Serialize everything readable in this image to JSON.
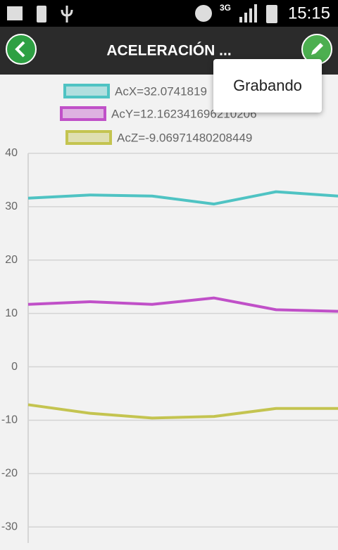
{
  "status_bar": {
    "network": "3G",
    "time": "15:15"
  },
  "header": {
    "title": "ACELERACIÓN ..."
  },
  "menu": {
    "items": [
      "Grabando"
    ]
  },
  "chart_data": {
    "type": "line",
    "categories": [
      null,
      null,
      null,
      null,
      null,
      null
    ],
    "series": [
      {
        "name": "AcX=32.0741819",
        "color": "#4fc3c3",
        "values": [
          31.6,
          32.2,
          32.0,
          30.5,
          32.8,
          32.0
        ]
      },
      {
        "name": "AcY=12.162341696210206",
        "color": "#c050c8",
        "values": [
          11.7,
          12.2,
          11.7,
          12.9,
          10.7,
          10.4
        ]
      },
      {
        "name": "AcZ=-9.06971480208449",
        "color": "#c4c450",
        "values": [
          -7.1,
          -8.7,
          -9.6,
          -9.3,
          -7.8,
          -7.8
        ]
      }
    ],
    "ylim": [
      -33,
      40
    ],
    "yticks": [
      40,
      30,
      20,
      10,
      0,
      -10,
      -20,
      -30
    ],
    "grid": true
  }
}
